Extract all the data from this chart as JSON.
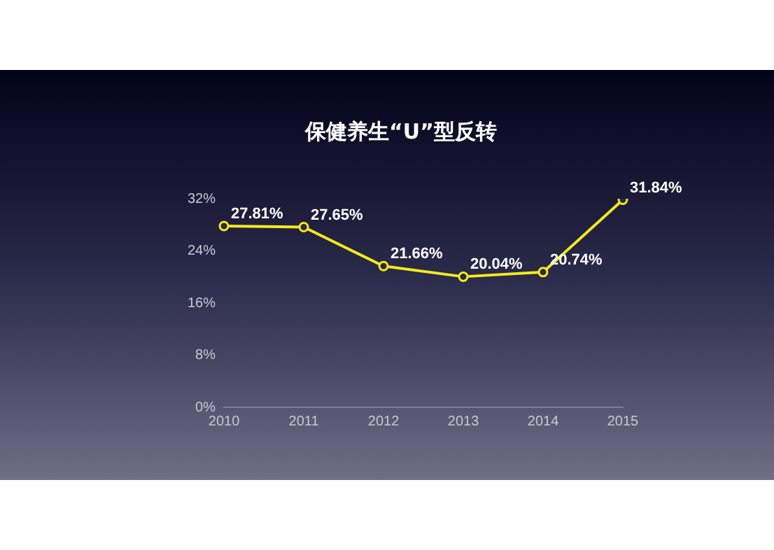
{
  "chart_data": {
    "type": "line",
    "title": "保健养生“U”型反转",
    "categories": [
      "2010",
      "2011",
      "2012",
      "2013",
      "2014",
      "2015"
    ],
    "series": [
      {
        "color": "#f2ea1c",
        "values": [
          27.81,
          27.65,
          21.66,
          20.04,
          20.74,
          31.84
        ],
        "value_labels": [
          "27.81%",
          "27.65%",
          "21.66%",
          "20.04%",
          "20.74%",
          "31.84%"
        ]
      }
    ],
    "ylim": [
      0,
      32
    ],
    "yticks": [
      {
        "value": 0,
        "label": "0%"
      },
      {
        "value": 8,
        "label": "8%"
      },
      {
        "value": 16,
        "label": "16%"
      },
      {
        "value": 24,
        "label": "24%"
      },
      {
        "value": 32,
        "label": "32%"
      }
    ],
    "grid": false,
    "legend": false,
    "marker": "circle",
    "line_style": "solid"
  }
}
